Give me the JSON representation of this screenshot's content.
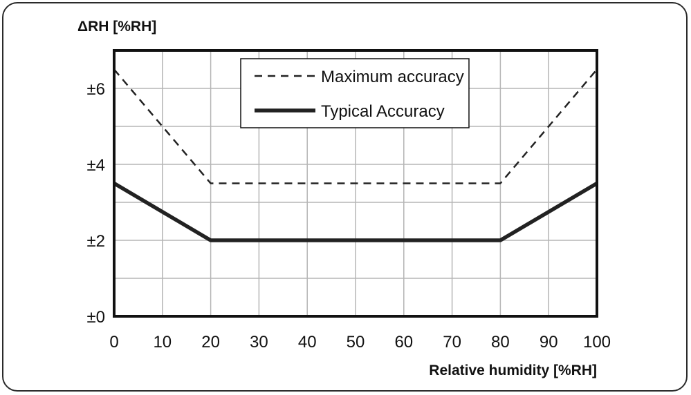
{
  "chart_data": {
    "type": "line",
    "ylabel": "ΔRH [%RH]",
    "xlabel": "Relative humidity [%RH]",
    "xlim": [
      0,
      100
    ],
    "ylim": [
      0,
      7
    ],
    "x_ticks": [
      0,
      10,
      20,
      30,
      40,
      50,
      60,
      70,
      80,
      90,
      100
    ],
    "x_tick_labels": [
      "0",
      "10",
      "20",
      "30",
      "40",
      "50",
      "60",
      "70",
      "80",
      "90",
      "100"
    ],
    "y_ticks": [
      0,
      2,
      4,
      6
    ],
    "y_tick_labels": [
      "±0",
      "±2",
      "±4",
      "±6"
    ],
    "grid": true,
    "legend_position": "top-center",
    "series": [
      {
        "name": "Maximum accuracy",
        "style": "dashed",
        "color": "#222222",
        "x": [
          0,
          20,
          80,
          100
        ],
        "y": [
          6.5,
          3.5,
          3.5,
          6.5
        ]
      },
      {
        "name": "Typical Accuracy",
        "style": "solid-thick",
        "color": "#222222",
        "x": [
          0,
          20,
          80,
          100
        ],
        "y": [
          3.5,
          2,
          2,
          3.5
        ]
      }
    ]
  }
}
